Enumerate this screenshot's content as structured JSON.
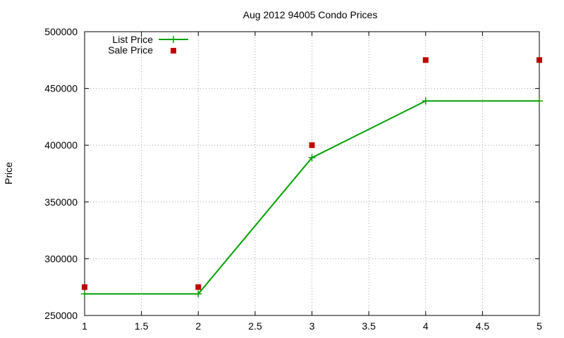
{
  "chart_data": {
    "type": "line",
    "title": "Aug 2012 94005 Condo Prices",
    "xlabel": "",
    "ylabel": "Price",
    "xlim": [
      1,
      5
    ],
    "ylim": [
      250000,
      500000
    ],
    "x_ticks": [
      "1",
      "1.5",
      "2",
      "2.5",
      "3",
      "3.5",
      "4",
      "4.5",
      "5"
    ],
    "y_ticks": [
      "250000",
      "300000",
      "350000",
      "400000",
      "450000",
      "500000"
    ],
    "grid": true,
    "legend_position": "top-left",
    "series": [
      {
        "name": "List Price",
        "style": "line+cross",
        "color": "#00a000",
        "x": [
          1,
          2,
          3,
          4,
          5
        ],
        "y": [
          269000,
          269000,
          389000,
          439000,
          439000
        ]
      },
      {
        "name": "Sale Price",
        "style": "square-points",
        "color": "#c00000",
        "x": [
          1,
          2,
          3,
          4,
          5
        ],
        "y": [
          275000,
          275000,
          400000,
          475000,
          475000
        ]
      }
    ]
  }
}
